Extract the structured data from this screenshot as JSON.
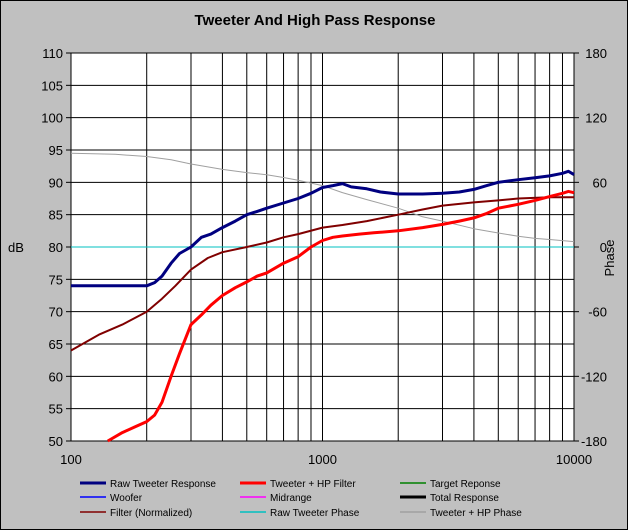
{
  "chart_data": {
    "type": "line",
    "title": "Tweeter  And High Pass Response",
    "xlabel": "",
    "ylabel": "dB",
    "y2label": "Phase",
    "x_scale": "log",
    "xlim": [
      100,
      10000
    ],
    "ylim": [
      50,
      110
    ],
    "y2lim": [
      -180,
      180
    ],
    "x_ticks": [
      "100",
      "1000",
      "10000"
    ],
    "y_ticks": [
      "50",
      "55",
      "60",
      "65",
      "70",
      "75",
      "80",
      "85",
      "90",
      "95",
      "100",
      "105",
      "110"
    ],
    "y2_ticks": [
      "-180",
      "-120",
      "-60",
      "0",
      "60",
      "120",
      "180"
    ],
    "grid": true,
    "legend_position": "bottom",
    "legend": [
      {
        "name": "Raw Tweeter Response",
        "color": "#000080"
      },
      {
        "name": "Tweeter + HP Filter",
        "color": "#ff0000"
      },
      {
        "name": "Target Reponse",
        "color": "#008000"
      },
      {
        "name": "Woofer",
        "color": "#0000ff"
      },
      {
        "name": "Midrange",
        "color": "#ff00ff"
      },
      {
        "name": "Total Response",
        "color": "#000000"
      },
      {
        "name": "Filter (Normalized)",
        "color": "#800000"
      },
      {
        "name": "Raw Tweeter Phase",
        "color": "#00c0c0"
      },
      {
        "name": "Tweeter + HP Phase",
        "color": "#a0a0a0"
      }
    ],
    "series": [
      {
        "name": "Raw Tweeter Response",
        "axis": "left",
        "color": "#000080",
        "width": 3,
        "x": [
          100,
          150,
          200,
          215,
          230,
          250,
          270,
          300,
          330,
          360,
          400,
          450,
          500,
          550,
          600,
          700,
          800,
          900,
          1000,
          1100,
          1200,
          1300,
          1500,
          1700,
          2000,
          2500,
          3000,
          3500,
          4000,
          4500,
          5000,
          6000,
          7000,
          8000,
          9000,
          9500,
          10000
        ],
        "y": [
          74,
          74,
          74,
          74.5,
          75.5,
          77.5,
          79,
          80,
          81.5,
          82,
          83,
          84,
          85,
          85.5,
          86,
          86.8,
          87.5,
          88.3,
          89.2,
          89.5,
          89.8,
          89.3,
          89,
          88.5,
          88.2,
          88.2,
          88.3,
          88.5,
          88.9,
          89.5,
          90,
          90.4,
          90.7,
          91,
          91.4,
          91.7,
          91.2
        ]
      },
      {
        "name": "Tweeter + HP Filter",
        "axis": "left",
        "color": "#ff0000",
        "width": 3,
        "x": [
          140,
          160,
          180,
          200,
          215,
          230,
          250,
          270,
          300,
          330,
          360,
          400,
          450,
          500,
          550,
          600,
          700,
          800,
          900,
          1000,
          1100,
          1200,
          1400,
          1600,
          2000,
          2500,
          3000,
          3500,
          4000,
          4500,
          5000,
          6000,
          7000,
          8000,
          9000,
          9500,
          10000
        ],
        "y": [
          50,
          51.3,
          52.2,
          53,
          54,
          56,
          60,
          63.5,
          68,
          69.5,
          71,
          72.5,
          73.7,
          74.6,
          75.5,
          76,
          77.5,
          78.5,
          80,
          81,
          81.5,
          81.7,
          82,
          82.2,
          82.5,
          83,
          83.5,
          84,
          84.5,
          85.2,
          86,
          86.6,
          87.2,
          87.8,
          88.3,
          88.6,
          88.4
        ]
      },
      {
        "name": "Filter (Normalized)",
        "axis": "left",
        "color": "#800000",
        "width": 2,
        "x": [
          100,
          130,
          160,
          200,
          230,
          260,
          300,
          350,
          400,
          500,
          600,
          700,
          800,
          1000,
          1200,
          1500,
          2000,
          2500,
          3000,
          4000,
          5000,
          6000,
          8000,
          10000
        ],
        "y": [
          64,
          66.5,
          68,
          70,
          72,
          74,
          76.5,
          78.3,
          79.2,
          80,
          80.7,
          81.5,
          82,
          83,
          83.4,
          84,
          85,
          85.8,
          86.4,
          86.9,
          87.2,
          87.5,
          87.7,
          87.7
        ]
      },
      {
        "name": "Raw Tweeter Phase",
        "axis": "right",
        "color": "#00c0c0",
        "width": 1,
        "x": [
          100,
          10000
        ],
        "y": [
          0,
          0
        ]
      },
      {
        "name": "Tweeter + HP Phase",
        "axis": "right",
        "color": "#a0a0a0",
        "width": 1,
        "x": [
          100,
          150,
          200,
          250,
          300,
          400,
          500,
          600,
          700,
          800,
          1000,
          1200,
          1500,
          2000,
          2500,
          3000,
          4000,
          5000,
          6000,
          7000,
          8000,
          10000
        ],
        "y": [
          87,
          86,
          84,
          81,
          77,
          72,
          69,
          67,
          64.5,
          62,
          57,
          50.5,
          44,
          36,
          28,
          24,
          17,
          13,
          10,
          8,
          7,
          5
        ]
      }
    ]
  }
}
